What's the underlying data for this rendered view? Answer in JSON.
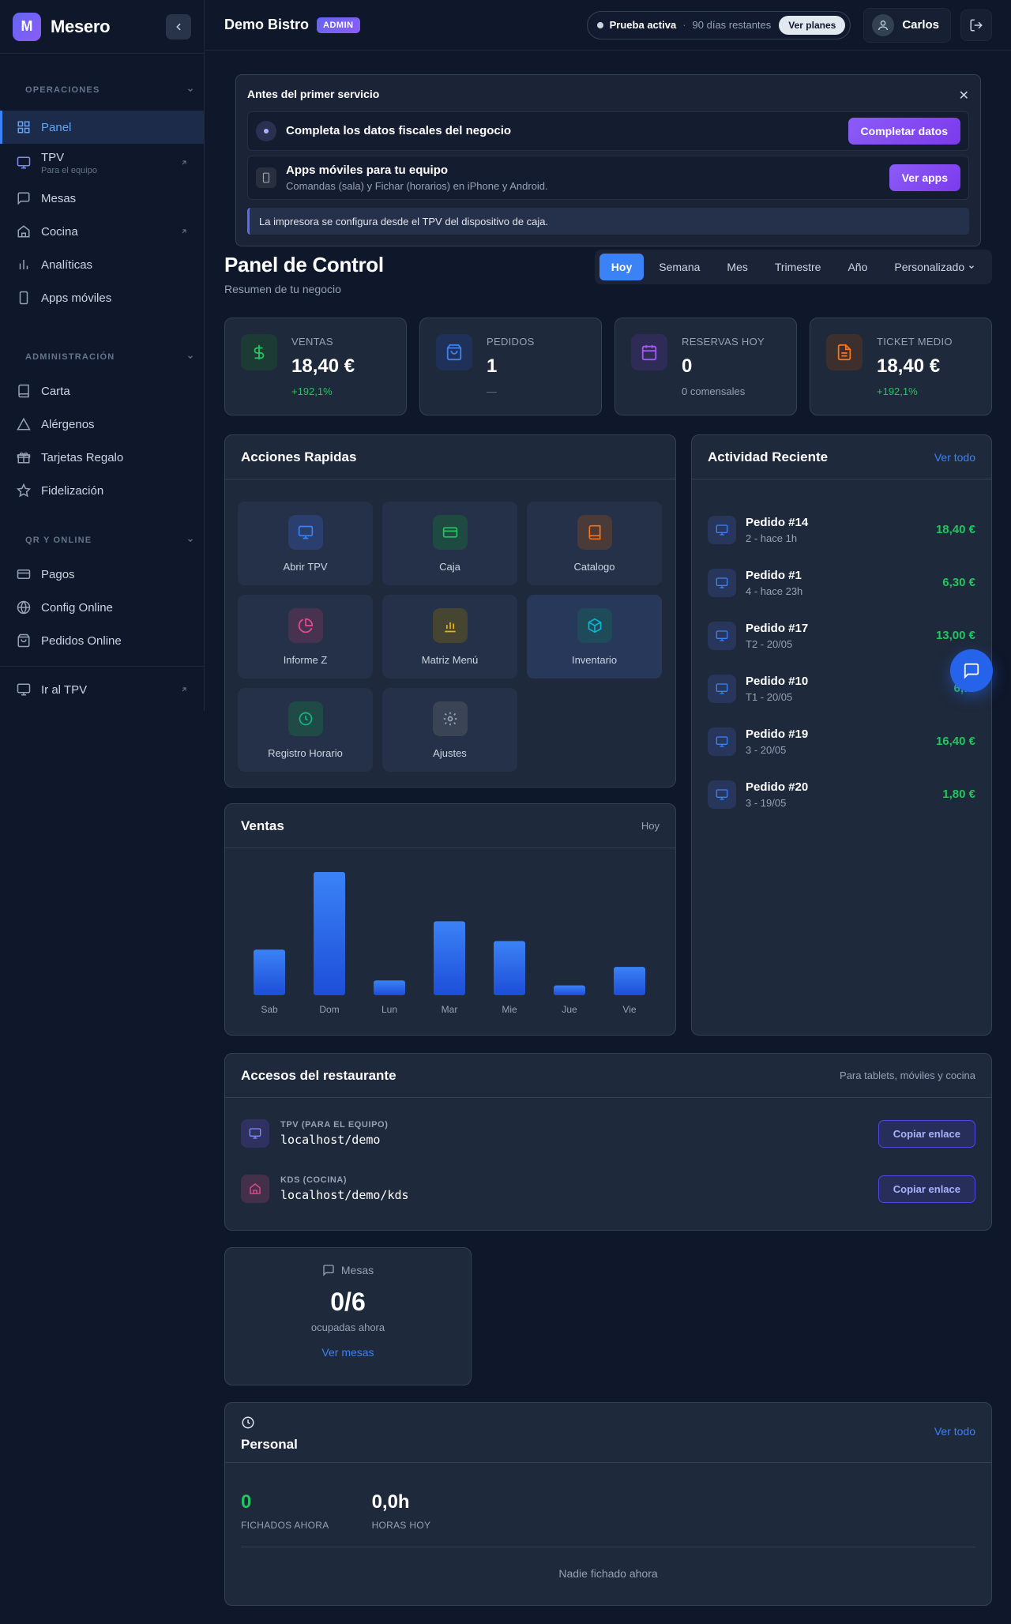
{
  "brand": {
    "logo_letter": "M",
    "name": "Mesero"
  },
  "sidebar": {
    "sections": [
      {
        "title": "OPERACIONES"
      },
      {
        "title": "ADMINISTRACIÓN"
      },
      {
        "title": "QR Y ONLINE"
      }
    ],
    "operaciones": [
      {
        "label": "Panel",
        "icon": "grid-icon"
      },
      {
        "label": "TPV",
        "sub": "Para el equipo",
        "icon": "monitor-icon"
      },
      {
        "label": "Mesas",
        "icon": "chat-icon"
      },
      {
        "label": "Cocina",
        "icon": "home-icon"
      },
      {
        "label": "Analíticas",
        "icon": "bar-chart-icon"
      },
      {
        "label": "Apps móviles",
        "icon": "phone-icon"
      }
    ],
    "administracion": [
      {
        "label": "Carta",
        "icon": "book-icon"
      },
      {
        "label": "Alérgenos",
        "icon": "warning-icon"
      },
      {
        "label": "Tarjetas Regalo",
        "icon": "gift-icon"
      },
      {
        "label": "Fidelización",
        "icon": "star-icon"
      }
    ],
    "qr_online": [
      {
        "label": "Pagos",
        "icon": "card-icon"
      },
      {
        "label": "Config Online",
        "icon": "globe-icon"
      },
      {
        "label": "Pedidos Online",
        "icon": "bag-icon"
      }
    ],
    "footer": {
      "label": "Ir al TPV",
      "icon": "monitor-icon"
    }
  },
  "topbar": {
    "restaurant": "Demo Bistro",
    "badge": "ADMIN",
    "trial_status": "Prueba activa",
    "trial_days": "90 días restantes",
    "plans_button": "Ver planes",
    "user_name": "Carlos"
  },
  "onboarding": {
    "title": "Antes del primer servicio",
    "task1": {
      "title": "Completa los datos fiscales del negocio",
      "button": "Completar datos"
    },
    "task2": {
      "title": "Apps móviles para tu equipo",
      "subtitle": "Comandas (sala) y Fichar (horarios) en iPhone y Android.",
      "button": "Ver apps"
    },
    "note": "La impresora se configura desde el TPV del dispositivo de caja."
  },
  "header": {
    "title": "Panel de Control",
    "subtitle": "Resumen de tu negocio",
    "periods": [
      "Hoy",
      "Semana",
      "Mes",
      "Trimestre",
      "Año",
      "Personalizado"
    ],
    "active_period": "Hoy"
  },
  "stats": [
    {
      "label": "VENTAS",
      "value": "18,40 €",
      "footer": "+192,1%",
      "footer_color": "#22c55e",
      "icon": "dollar-icon",
      "color": "#22c55e",
      "bg": "#1c3b35"
    },
    {
      "label": "PEDIDOS",
      "value": "1",
      "footer": "—",
      "footer_color": "#64748b",
      "icon": "bag-icon",
      "color": "#3b82f6",
      "bg": "#1f3158"
    },
    {
      "label": "RESERVAS HOY",
      "value": "0",
      "footer": "0 comensales",
      "footer_color": "#94a3b8",
      "icon": "calendar-icon",
      "color": "#a855f7",
      "bg": "#2f2b57"
    },
    {
      "label": "TICKET MEDIO",
      "value": "18,40 €",
      "footer": "+192,1%",
      "footer_color": "#22c55e",
      "icon": "document-icon",
      "color": "#f97316",
      "bg": "#3d2f2e"
    }
  ],
  "quick_actions": {
    "title": "Acciones Rapidas",
    "items": [
      {
        "label": "Abrir TPV",
        "icon": "monitor-icon",
        "color": "#3b82f6",
        "bg": "#2a3f6e"
      },
      {
        "label": "Caja",
        "icon": "card-icon",
        "color": "#22c55e",
        "bg": "#1f4a42"
      },
      {
        "label": "Catalogo",
        "icon": "book-icon",
        "color": "#f97316",
        "bg": "#4a3a38"
      },
      {
        "label": "Informe Z",
        "icon": "pie-icon",
        "color": "#ec4899",
        "bg": "#47334f"
      },
      {
        "label": "Matriz Menú",
        "icon": "bar-chart-icon",
        "color": "#eab308",
        "bg": "#464531"
      },
      {
        "label": "Inventario",
        "icon": "cube-icon",
        "color": "#06b6d4",
        "bg": "#1f4a5a"
      },
      {
        "label": "Registro Horario",
        "icon": "clock-icon",
        "color": "#10b981",
        "bg": "#1f4a46"
      },
      {
        "label": "Ajustes",
        "icon": "gear-icon",
        "color": "#94a3b8",
        "bg": "#3a4455"
      }
    ]
  },
  "activity": {
    "title": "Actividad Reciente",
    "link": "Ver todo",
    "items": [
      {
        "title": "Pedido #14",
        "sub": "2 - hace 1h",
        "amount": "18,40 €"
      },
      {
        "title": "Pedido #1",
        "sub": "4 - hace 23h",
        "amount": "6,30 €"
      },
      {
        "title": "Pedido #17",
        "sub": "T2 - 20/05",
        "amount": "13,00 €"
      },
      {
        "title": "Pedido #10",
        "sub": "T1 - 20/05",
        "amount": "6,…"
      },
      {
        "title": "Pedido #19",
        "sub": "3 - 20/05",
        "amount": "16,40 €"
      },
      {
        "title": "Pedido #20",
        "sub": "3 - 19/05",
        "amount": "1,80 €"
      }
    ]
  },
  "sales_chart": {
    "title": "Ventas",
    "period": "Hoy"
  },
  "chart_data": {
    "type": "bar",
    "categories": [
      "Sab",
      "Dom",
      "Lun",
      "Mar",
      "Mie",
      "Jue",
      "Vie"
    ],
    "values": [
      37,
      100,
      12,
      60,
      44,
      8,
      23
    ],
    "title": "Ventas",
    "grid": false,
    "colors": [
      "#3b82f6",
      "#1d4ed8"
    ]
  },
  "access": {
    "title": "Accesos del restaurante",
    "hint": "Para tablets, móviles y cocina",
    "items": [
      {
        "label": "TPV (PARA EL EQUIPO)",
        "url": "localhost/demo",
        "button": "Copiar enlace",
        "icon": "monitor-icon",
        "color": "#818cf8",
        "bg": "#2f3260"
      },
      {
        "label": "KDS (COCINA)",
        "url": "localhost/demo/kds",
        "button": "Copiar enlace",
        "icon": "home-icon",
        "color": "#ec4899",
        "bg": "#45304a"
      }
    ]
  },
  "mesas": {
    "title": "Mesas",
    "value": "0/6",
    "subtitle": "ocupadas ahora",
    "link": "Ver mesas"
  },
  "personal": {
    "title": "Personal",
    "link": "Ver todo",
    "fichados_value": "0",
    "fichados_label": "FICHADOS AHORA",
    "horas_value": "0,0h",
    "horas_label": "HORAS HOY",
    "empty": "Nadie fichado ahora"
  }
}
